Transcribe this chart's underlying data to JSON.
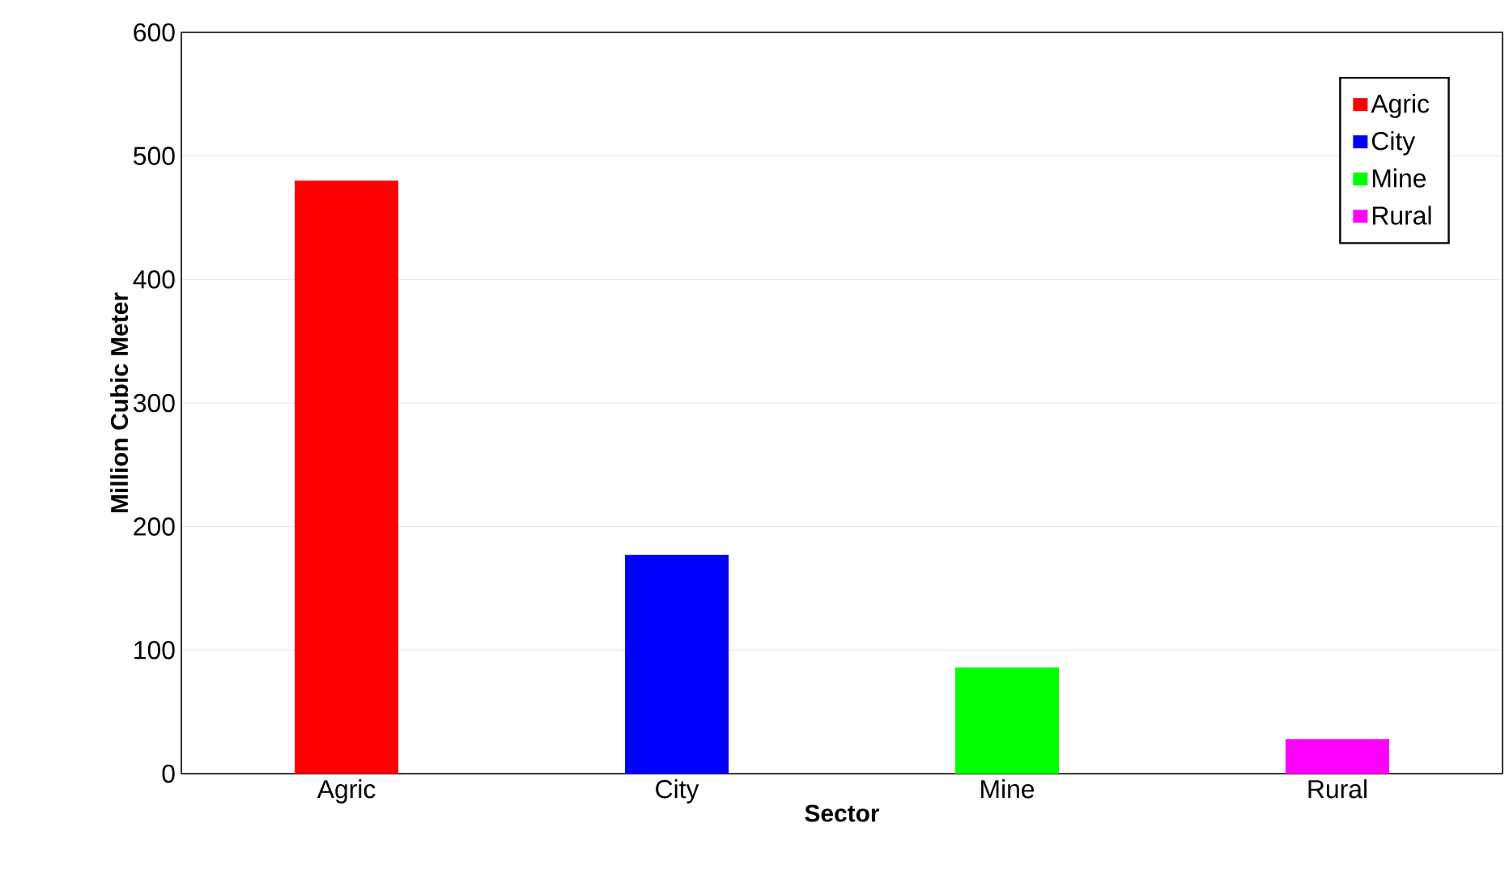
{
  "chart_data": {
    "type": "bar",
    "xlabel": "Sector",
    "ylabel": "Million Cubic Meter",
    "categories": [
      "Agric",
      "City",
      "Mine",
      "Rural"
    ],
    "series": [
      {
        "name": "Agric",
        "color": "#ff0000",
        "values": [
          480,
          null,
          null,
          null
        ]
      },
      {
        "name": "City",
        "color": "#0000ff",
        "values": [
          null,
          177,
          null,
          null
        ]
      },
      {
        "name": "Mine",
        "color": "#00ff00",
        "values": [
          null,
          null,
          86,
          null
        ]
      },
      {
        "name": "Rural",
        "color": "#ff00ff",
        "values": [
          null,
          null,
          null,
          28
        ]
      }
    ],
    "ylim": [
      0,
      600
    ],
    "yticks": [
      0,
      100,
      200,
      300,
      400,
      500,
      600
    ],
    "grid": "y",
    "legend": "top right"
  }
}
